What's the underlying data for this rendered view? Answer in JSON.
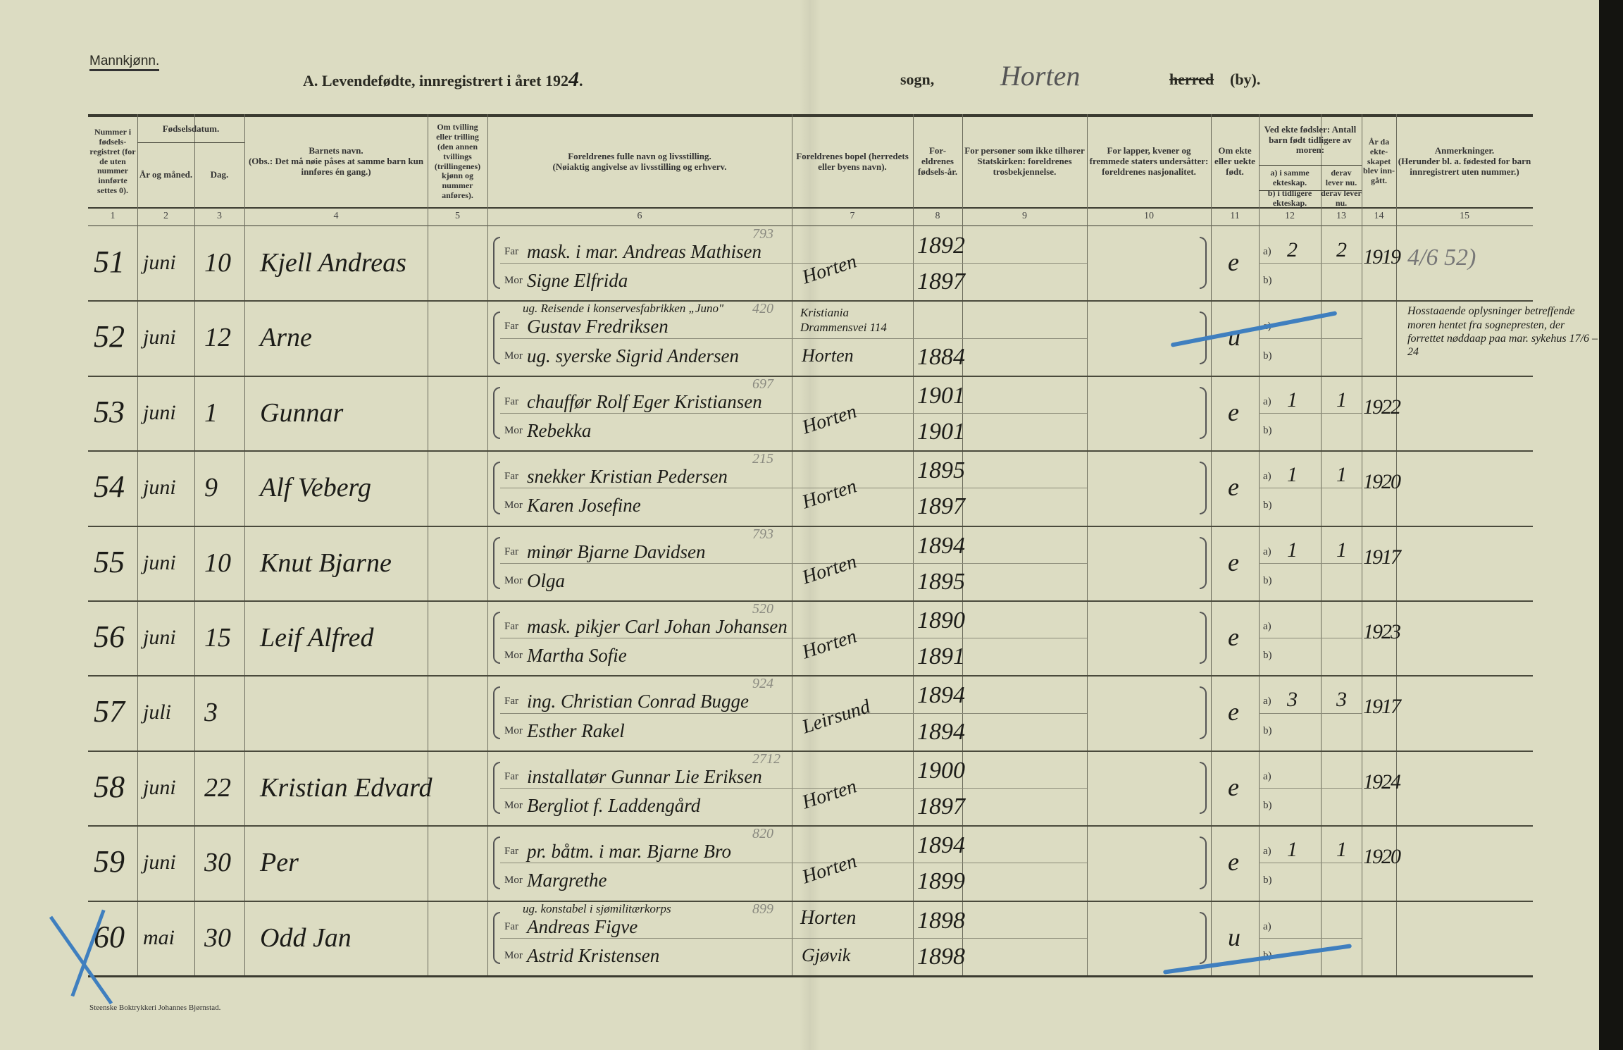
{
  "header": {
    "gender": "Mannkjønn.",
    "title": "A.  Levendefødte, innregistrert i året 192",
    "year_hw": "4",
    "title_end": ".",
    "sogn_label": "sogn,",
    "sogn_hw": "Horten",
    "herred_struck": "herred",
    "by_label": "(by)."
  },
  "columns": [
    {
      "num": "1",
      "label": "Nummer i fødsels-registret (for de uten nummer innførte settes 0)."
    },
    {
      "num": "2",
      "label": "År og måned."
    },
    {
      "num": "3",
      "label": "Dag."
    },
    {
      "num": "4",
      "label": "Barnets navn.\n(Obs.: Det må nøie påses at samme barn kun innføres én gang.)"
    },
    {
      "num": "5",
      "label": "Om tvilling eller trilling (den annen tvillings (trillingenes) kjønn og nummer anføres)."
    },
    {
      "num": "6",
      "label": "Foreldrenes fulle navn og livsstilling.\n(Nøiaktig angivelse av livsstilling og erhverv."
    },
    {
      "num": "7",
      "label": "Foreldrenes bopel (herredets eller byens navn)."
    },
    {
      "num": "8",
      "label": "For-eldrenes fødsels-år."
    },
    {
      "num": "9",
      "label": "For personer som ikke tilhører Statskirken: foreldrenes trosbekjennelse."
    },
    {
      "num": "10",
      "label": "For lapper, kvener og fremmede staters undersåtter: foreldrenes nasjonalitet."
    },
    {
      "num": "11",
      "label": "Om ekte eller uekte født."
    },
    {
      "num": "12",
      "label": "a) i samme ekteskap."
    },
    {
      "num": "13",
      "label": "derav lever nu."
    },
    {
      "num": "14",
      "label": "År da ekte-skapet blev inn-gått."
    },
    {
      "num": "15",
      "label": "Anmerkninger.\n(Herunder bl. a. fødested for barn innregistrert uten nummer.)"
    }
  ],
  "group_headers": {
    "fodselsdatum": "Fødselsdatum.",
    "ekte_fodsler": "Ved ekte fødsler: Antall barn født tidligere av moren:",
    "b_label": "b) i tidligere ekteskap.",
    "b_derav": "derav lever nu."
  },
  "labels": {
    "far": "Far",
    "mor": "Mor",
    "a": "a)",
    "b": "b)"
  },
  "rows": [
    {
      "nr": "51",
      "month": "juni",
      "day": "10",
      "name": "Kjell Andreas",
      "far_extra": "",
      "far": "mask. i mar. Andreas Mathisen",
      "mor": "Signe Elfrida",
      "note_blue": "793",
      "bopel_far": "Horten",
      "bopel_mor": "",
      "far_year": "1892",
      "mor_year": "1897",
      "ekte": "e",
      "a12": "2",
      "a13": "2",
      "year14": "1919",
      "remark": "4/6 52)"
    },
    {
      "nr": "52",
      "month": "juni",
      "day": "12",
      "name": "Arne",
      "far_extra": "ug. Reisende i konservesfabrikken „Juno\"",
      "far": "Gustav Fredriksen",
      "mor": "ug. syerske Sigrid Andersen",
      "note_blue": "420",
      "bopel_far": "Kristiania Drammensvei 114",
      "bopel_mor": "Horten",
      "far_year": "",
      "mor_year": "1884",
      "ekte": "u",
      "a12": "",
      "a13": "",
      "year14": "",
      "remark": "Hosstaaende oplysninger betreffende moren hentet fra sognepresten, der forrettet nøddaap paa mar. sykehus 17/6 – 24"
    },
    {
      "nr": "53",
      "month": "juni",
      "day": "1",
      "name": "Gunnar",
      "far_extra": "",
      "far": "chauffør Rolf Eger Kristiansen",
      "mor": "Rebekka",
      "note_blue": "697",
      "bopel_far": "Horten",
      "bopel_mor": "",
      "far_year": "1901",
      "mor_year": "1901",
      "ekte": "e",
      "a12": "1",
      "a13": "1",
      "year14": "1922",
      "remark": ""
    },
    {
      "nr": "54",
      "month": "juni",
      "day": "9",
      "name": "Alf Veberg",
      "far_extra": "",
      "far": "snekker Kristian Pedersen",
      "mor": "Karen Josefine",
      "note_blue": "215",
      "bopel_far": "Horten",
      "bopel_mor": "",
      "far_year": "1895",
      "mor_year": "1897",
      "ekte": "e",
      "a12": "1",
      "a13": "1",
      "year14": "1920",
      "remark": ""
    },
    {
      "nr": "55",
      "month": "juni",
      "day": "10",
      "name": "Knut Bjarne",
      "far_extra": "",
      "far": "minør Bjarne Davidsen",
      "mor": "Olga",
      "note_blue": "793",
      "bopel_far": "Horten",
      "bopel_mor": "",
      "far_year": "1894",
      "mor_year": "1895",
      "ekte": "e",
      "a12": "1",
      "a13": "1",
      "year14": "1917",
      "remark": ""
    },
    {
      "nr": "56",
      "month": "juni",
      "day": "15",
      "name": "Leif Alfred",
      "far_extra": "",
      "far": "mask. pikjer Carl Johan Johansen",
      "mor": "Martha Sofie",
      "note_blue": "520",
      "bopel_far": "Horten",
      "bopel_mor": "",
      "far_year": "1890",
      "mor_year": "1891",
      "ekte": "e",
      "a12": "",
      "a13": "",
      "year14": "1923",
      "remark": ""
    },
    {
      "nr": "57",
      "month": "juli",
      "day": "3",
      "name": "",
      "far_extra": "",
      "far": "ing. Christian Conrad Bugge",
      "mor": "Esther Rakel",
      "note_blue": "924",
      "bopel_far": "Leirsund",
      "bopel_mor": "",
      "far_year": "1894",
      "mor_year": "1894",
      "ekte": "e",
      "a12": "3",
      "a13": "3",
      "year14": "1917",
      "remark": ""
    },
    {
      "nr": "58",
      "month": "juni",
      "day": "22",
      "name": "Kristian Edvard",
      "far_extra": "",
      "far": "installatør Gunnar Lie Eriksen",
      "mor": "Bergliot f. Laddengård",
      "note_blue": "2712",
      "bopel_far": "Horten",
      "bopel_mor": "",
      "far_year": "1900",
      "mor_year": "1897",
      "ekte": "e",
      "a12": "",
      "a13": "",
      "year14": "1924",
      "remark": ""
    },
    {
      "nr": "59",
      "month": "juni",
      "day": "30",
      "name": "Per",
      "far_extra": "",
      "far": "pr. båtm. i mar. Bjarne Bro",
      "mor": "Margrethe",
      "note_blue": "820",
      "bopel_far": "Horten",
      "bopel_mor": "",
      "far_year": "1894",
      "mor_year": "1899",
      "ekte": "e",
      "a12": "1",
      "a13": "1",
      "year14": "1920",
      "remark": ""
    },
    {
      "nr": "60",
      "month": "mai",
      "day": "30",
      "name": "Odd Jan",
      "far_extra": "ug. konstabel i sjømilitærkorps",
      "far": "Andreas Figve",
      "mor": "Astrid Kristensen",
      "note_blue": "899",
      "bopel_far": "Horten",
      "bopel_mor": "Gjøvik",
      "far_year": "1898",
      "mor_year": "1898",
      "ekte": "u",
      "a12": "",
      "a13": "",
      "year14": "",
      "remark": ""
    }
  ],
  "footer": {
    "printer": "Steenske Boktrykkeri Johannes Bjørnstad."
  },
  "colors": {
    "paper": "#dcdcc2",
    "ink": "#1c1c18",
    "blue_pencil": "#3f7fbf"
  }
}
